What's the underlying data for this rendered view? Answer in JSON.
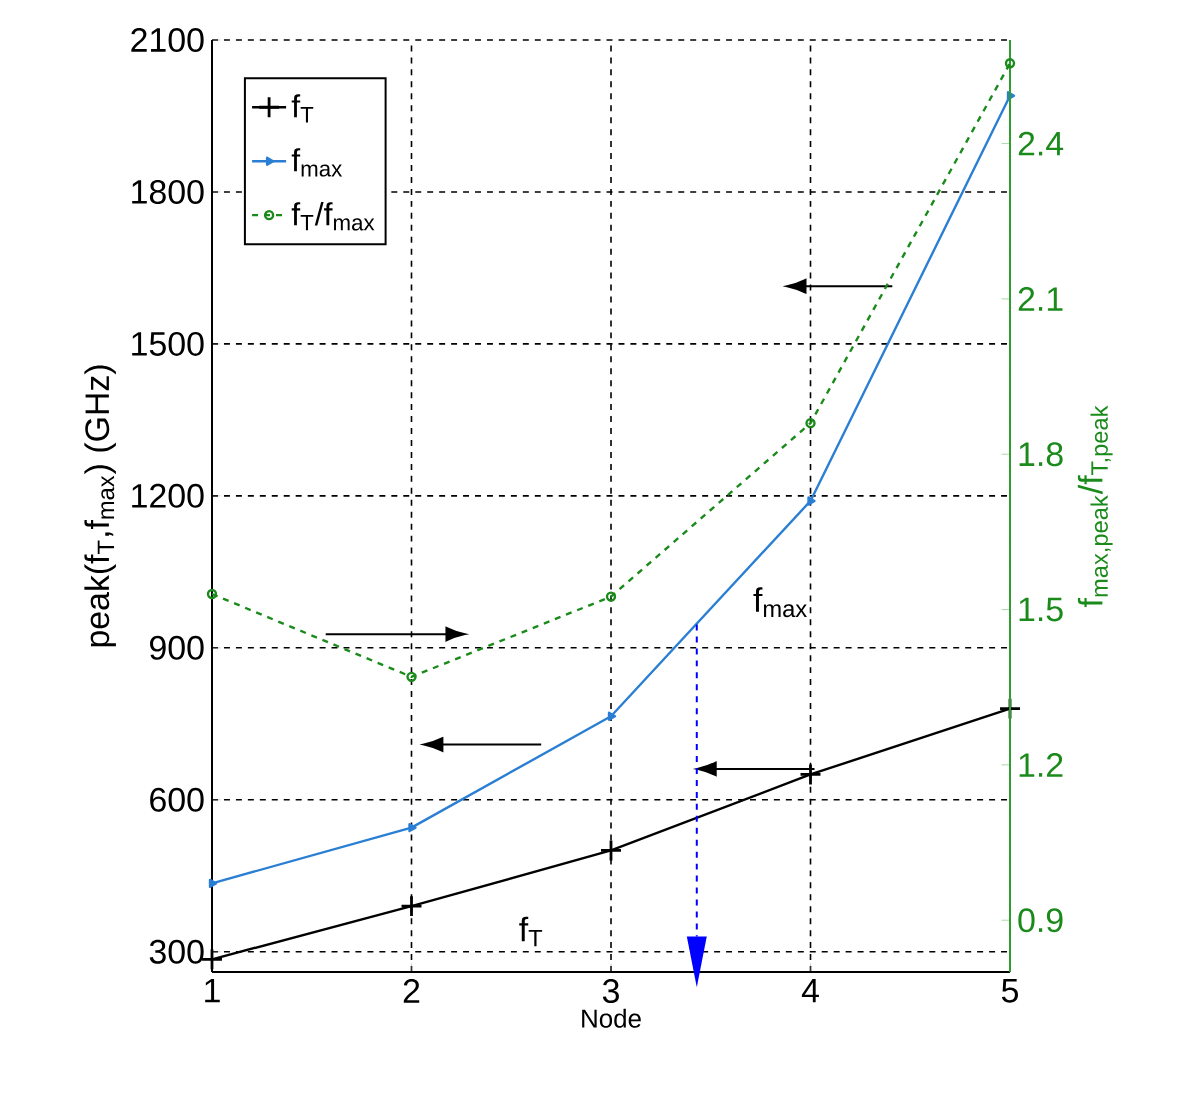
{
  "chart_data": {
    "type": "line",
    "xlabel": "Node",
    "ylabel": "peak(f$_{T}$,f$_{max}$) (GHz)",
    "y2label": "f$_{max,peak}$/f$_{T,peak}$",
    "x": [
      1,
      2,
      3,
      4,
      5
    ],
    "series": [
      {
        "name": "f$_{T}$",
        "color": "#000000",
        "values": [
          285,
          390,
          500,
          650,
          780
        ],
        "marker": "cross",
        "line_style": "solid"
      },
      {
        "name": "f$_{max}$",
        "color": "#2a7fd4",
        "values": [
          435,
          545,
          765,
          1190,
          1990
        ],
        "marker": "triangle",
        "line_style": "solid"
      },
      {
        "name": "f$_{T}$/f$_{max}$",
        "color": "#1a8a1a",
        "values": [
          1.53,
          1.37,
          1.525,
          1.86,
          2.555
        ],
        "marker": "circle",
        "line_style": "dashed",
        "axis": "y2"
      }
    ],
    "xlim": [
      1,
      5
    ],
    "xticks": [
      1,
      2,
      3,
      4,
      5
    ],
    "ylim": [
      260,
      2100
    ],
    "yticks": [
      300,
      600,
      900,
      1200,
      1500,
      1800,
      2100
    ],
    "y2lim": [
      0.8,
      2.6
    ],
    "y2ticks": [
      0.9,
      1.2,
      1.5,
      1.8,
      2.1,
      2.4
    ],
    "annotations": [
      "f$_{T}$",
      "f$_{max}$"
    ],
    "grid": true,
    "legend": "top left"
  }
}
